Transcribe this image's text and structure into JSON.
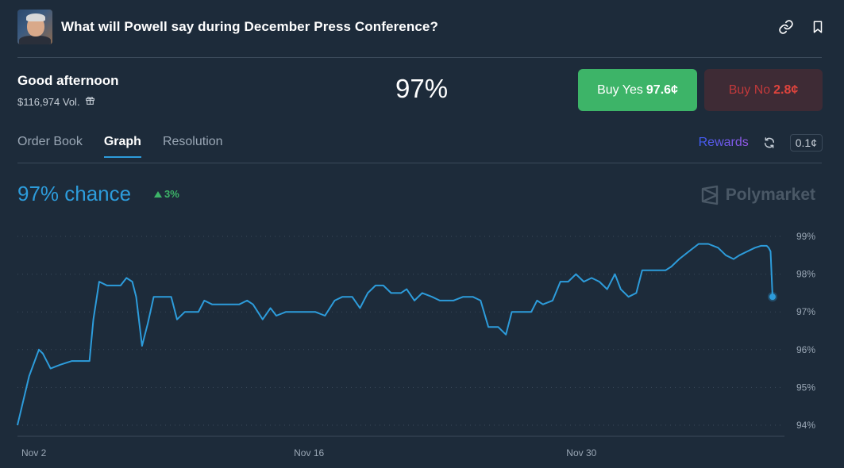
{
  "header": {
    "title": "What will Powell say during December Press Conference?",
    "link_icon": "link-icon",
    "bookmark_icon": "bookmark-icon"
  },
  "summary": {
    "greeting": "Good afternoon",
    "volume": "$116,974 Vol.",
    "probability": "97%"
  },
  "buttons": {
    "yes_label": "Buy Yes",
    "yes_price": "97.6¢",
    "no_label": "Buy No",
    "no_price": "2.8¢"
  },
  "tabs": [
    {
      "label": "Order Book",
      "active": false
    },
    {
      "label": "Graph",
      "active": true
    },
    {
      "label": "Resolution",
      "active": false
    }
  ],
  "toolbar": {
    "rewards": "Rewards",
    "tick_size": "0.1¢"
  },
  "graph": {
    "chance": "97% chance",
    "change": "3%",
    "brand": "Polymarket"
  },
  "colors": {
    "background": "#1d2b3a",
    "accent": "#2d9cdb",
    "yes": "#3db468",
    "no": "#e0443d"
  },
  "chart_data": {
    "type": "line",
    "x_tick_labels": [
      "Nov 2",
      "Nov 16",
      "Nov 30"
    ],
    "x_tick_days": [
      2,
      16,
      30
    ],
    "y_tick_labels": [
      "99%",
      "98%",
      "97%",
      "96%",
      "95%",
      "94%"
    ],
    "ylim": [
      94,
      99
    ],
    "xlim": [
      2,
      40.8
    ],
    "grid": true,
    "series": [
      {
        "x": [
          2,
          2.6,
          3.1,
          3.3,
          3.7,
          4.2,
          4.8,
          5.3,
          5.7,
          5.9,
          6.2,
          6.6,
          6.9,
          7.3,
          7.6,
          7.9,
          8.1,
          8.4,
          8.7,
          9.0,
          9.3,
          9.6,
          9.9,
          10.2,
          10.6,
          11.0,
          11.3,
          11.6,
          12.0,
          12.4,
          12.8,
          13.4,
          13.8,
          14.1,
          14.6,
          15.0,
          15.3,
          15.8,
          16.3,
          16.8,
          17.3,
          17.8,
          18.3,
          18.7,
          19.2,
          19.6,
          20.0,
          20.4,
          20.8,
          21.2,
          21.7,
          22.0,
          22.4,
          22.8,
          23.3,
          23.7,
          24.0,
          24.4,
          24.9,
          25.4,
          25.8,
          26.2,
          26.7,
          27.1,
          27.4,
          27.9,
          28.4,
          28.7,
          29.0,
          29.5,
          29.9,
          30.3,
          30.7,
          31.1,
          31.5,
          31.9,
          32.3,
          32.7,
          33.0,
          33.4,
          33.8,
          34.1,
          34.5,
          34.9,
          35.3,
          35.6,
          36.0,
          36.5,
          37.0,
          37.5,
          38.0,
          38.4,
          38.8,
          39.1,
          39.5,
          39.9,
          40.2,
          40.5,
          40.6,
          40.7,
          40.8
        ],
        "y": [
          94.0,
          95.3,
          96.0,
          95.9,
          95.5,
          95.6,
          95.7,
          95.7,
          95.7,
          96.8,
          97.8,
          97.7,
          97.7,
          97.7,
          97.9,
          97.8,
          97.4,
          96.1,
          96.7,
          97.4,
          97.4,
          97.4,
          97.4,
          96.8,
          97.0,
          97.0,
          97.0,
          97.3,
          97.2,
          97.2,
          97.2,
          97.2,
          97.3,
          97.2,
          96.8,
          97.1,
          96.9,
          97.0,
          97.0,
          97.0,
          97.0,
          96.9,
          97.3,
          97.4,
          97.4,
          97.1,
          97.5,
          97.7,
          97.7,
          97.5,
          97.5,
          97.6,
          97.3,
          97.5,
          97.4,
          97.3,
          97.3,
          97.3,
          97.4,
          97.4,
          97.3,
          96.6,
          96.6,
          96.4,
          97.0,
          97.0,
          97.0,
          97.3,
          97.2,
          97.3,
          97.8,
          97.8,
          98.0,
          97.8,
          97.9,
          97.8,
          97.6,
          98.0,
          97.6,
          97.4,
          97.5,
          98.1,
          98.1,
          98.1,
          98.1,
          98.2,
          98.4,
          98.6,
          98.8,
          98.8,
          98.7,
          98.5,
          98.4,
          98.5,
          98.6,
          98.7,
          98.75,
          98.75,
          98.7,
          98.6,
          97.4
        ]
      }
    ],
    "line_color": "#2d9cdb"
  }
}
